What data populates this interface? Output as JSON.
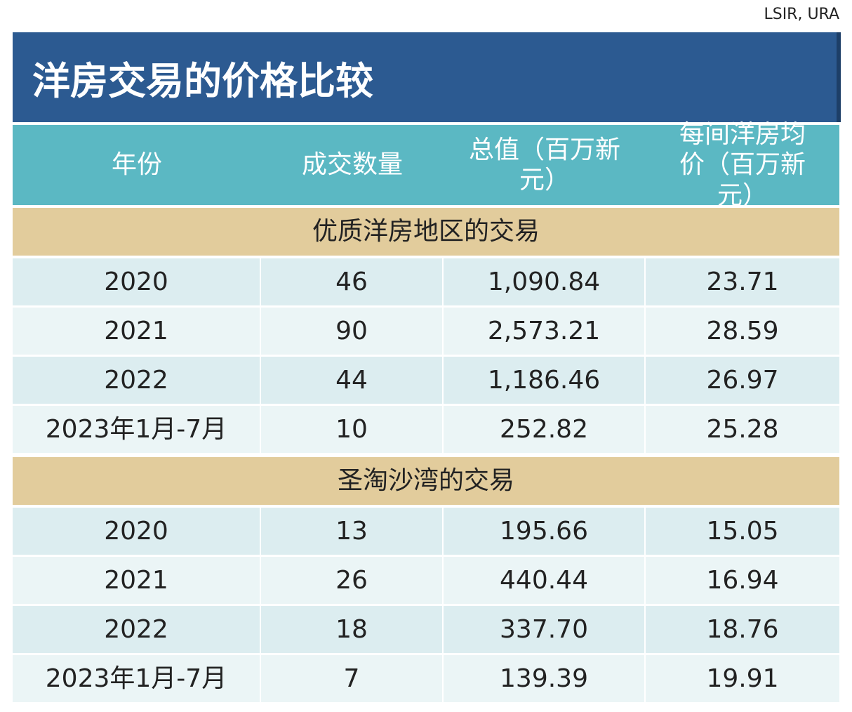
{
  "source": "LSIR, URA",
  "title": "洋房交易的价格比较",
  "table": {
    "headers": [
      "年份",
      "成交数量",
      "总值（百万新元）",
      "每间洋房均价（百万新元）"
    ],
    "sections": [
      {
        "title": "优质洋房地区的交易",
        "rows": [
          [
            "2020",
            "46",
            "1,090.84",
            "23.71"
          ],
          [
            "2021",
            "90",
            "2,573.21",
            "28.59"
          ],
          [
            "2022",
            "44",
            "1,186.46",
            "26.97"
          ],
          [
            "2023年1月-7月",
            "10",
            "252.82",
            "25.28"
          ]
        ]
      },
      {
        "title": "圣淘沙湾的交易",
        "rows": [
          [
            "2020",
            "13",
            "195.66",
            "15.05"
          ],
          [
            "2021",
            "26",
            "440.44",
            "16.94"
          ],
          [
            "2022",
            "18",
            "337.70",
            "18.76"
          ],
          [
            "2023年1月-7月",
            "7",
            "139.39",
            "19.91"
          ]
        ]
      }
    ]
  }
}
